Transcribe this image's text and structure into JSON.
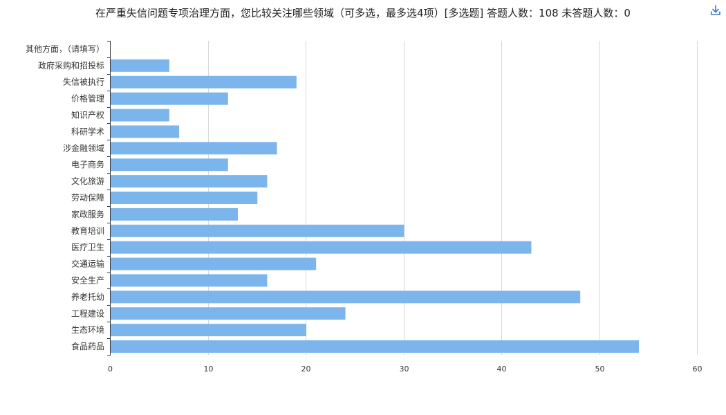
{
  "title": "在严重失信问题专项治理方面，您比较关注哪些领域（可多选，最多选4项）[多选题]  答题人数：108  未答题人数：0",
  "download_icon": "download-icon",
  "colors": {
    "bar": "#7cb5ec",
    "grid": "#d8d8d8",
    "axis": "#333333"
  },
  "chart_data": {
    "type": "bar",
    "orientation": "horizontal",
    "title": "在严重失信问题专项治理方面，您比较关注哪些领域（可多选，最多选4项）[多选题]  答题人数：108  未答题人数：0",
    "categories": [
      "其他方面，（请填写）",
      "政府采购和招投标",
      "失信被执行",
      "价格管理",
      "知识产权",
      "科研学术",
      "涉金融领域",
      "电子商务",
      "文化旅游",
      "劳动保障",
      "家政服务",
      "教育培训",
      "医疗卫生",
      "交通运输",
      "安全生产",
      "养老托幼",
      "工程建设",
      "生态环境",
      "食品药品"
    ],
    "values": [
      0,
      6,
      19,
      12,
      6,
      7,
      17,
      12,
      16,
      15,
      13,
      30,
      43,
      21,
      16,
      48,
      24,
      20,
      54
    ],
    "xlim": [
      0,
      60
    ],
    "xticks": [
      0,
      10,
      20,
      30,
      40,
      50,
      60
    ],
    "grid": true,
    "legend": "none"
  }
}
